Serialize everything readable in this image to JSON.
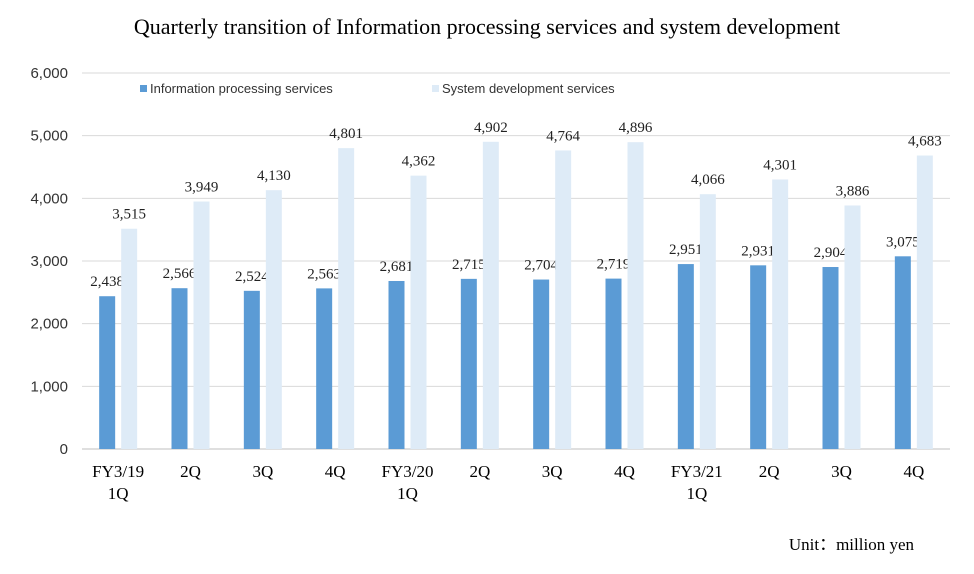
{
  "chart_data": {
    "type": "bar",
    "title": "Quarterly transition of Information processing services and system development",
    "unit_note": "Unit：million yen",
    "categories": [
      [
        "FY3/19",
        "1Q"
      ],
      [
        "2Q"
      ],
      [
        "3Q"
      ],
      [
        "4Q"
      ],
      [
        "FY3/20",
        "1Q"
      ],
      [
        "2Q"
      ],
      [
        "3Q"
      ],
      [
        "4Q"
      ],
      [
        "FY3/21",
        "1Q"
      ],
      [
        "2Q"
      ],
      [
        "3Q"
      ],
      [
        "4Q"
      ]
    ],
    "series": [
      {
        "name": "Information processing services",
        "color": "#5b9bd5",
        "values": [
          2438,
          2566,
          2524,
          2563,
          2681,
          2715,
          2704,
          2719,
          2951,
          2931,
          2904,
          3075
        ]
      },
      {
        "name": "System development services",
        "color": "#deebf7",
        "values": [
          3515,
          3949,
          4130,
          4801,
          4362,
          4902,
          4764,
          4896,
          4066,
          4301,
          3886,
          4683
        ]
      }
    ],
    "ylim": [
      0,
      6000
    ],
    "yticks": [
      "0",
      "1,000",
      "2,000",
      "3,000",
      "4,000",
      "5,000",
      "6,000"
    ],
    "grid": true,
    "legend_position": "top"
  }
}
